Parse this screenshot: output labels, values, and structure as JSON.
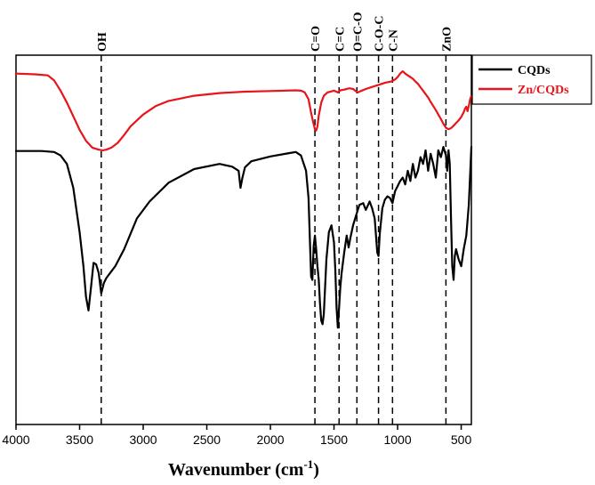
{
  "chart_data": {
    "type": "line",
    "title": "",
    "xlabel": "Wavenumber (cm",
    "xlabel_sup": "-1",
    "xlabel_suffix": ")",
    "ylabel": "",
    "xlim": [
      4000,
      420
    ],
    "ylim": [
      0,
      1
    ],
    "x_ticks": [
      {
        "value": 4000,
        "label": "4000"
      },
      {
        "value": 3500,
        "label": "3500"
      },
      {
        "value": 3000,
        "label": "3000"
      },
      {
        "value": 2500,
        "label": "2500"
      },
      {
        "value": 2000,
        "label": "2000"
      },
      {
        "value": 1500,
        "label": "1500"
      },
      {
        "value": 1000,
        "label": "1000"
      },
      {
        "value": 500,
        "label": "500"
      }
    ],
    "legend_position": "top-right-outside",
    "annotations": [
      {
        "label": "OH",
        "x": 3330
      },
      {
        "label": "C=O",
        "x": 1650
      },
      {
        "label": "C=C",
        "x": 1460
      },
      {
        "label": "O=C-O",
        "x": 1320
      },
      {
        "label": "C-O-C",
        "x": 1150
      },
      {
        "label": "C-N",
        "x": 1040
      },
      {
        "label": "ZnO",
        "x": 620
      }
    ],
    "series": [
      {
        "name": "CQDs",
        "color": "#000000",
        "x": [
          4000,
          3800,
          3700,
          3650,
          3600,
          3550,
          3500,
          3470,
          3450,
          3430,
          3410,
          3390,
          3370,
          3350,
          3330,
          3310,
          3290,
          3260,
          3220,
          3150,
          3050,
          2950,
          2800,
          2600,
          2400,
          2300,
          2250,
          2235,
          2220,
          2200,
          2150,
          2000,
          1850,
          1800,
          1760,
          1720,
          1700,
          1690,
          1680,
          1670,
          1660,
          1650,
          1640,
          1630,
          1620,
          1610,
          1600,
          1590,
          1580,
          1560,
          1540,
          1520,
          1500,
          1490,
          1480,
          1470,
          1460,
          1450,
          1440,
          1420,
          1400,
          1385,
          1370,
          1350,
          1330,
          1300,
          1270,
          1250,
          1220,
          1200,
          1180,
          1160,
          1150,
          1140,
          1120,
          1100,
          1080,
          1060,
          1040,
          1020,
          1000,
          980,
          960,
          940,
          920,
          900,
          880,
          860,
          840,
          820,
          800,
          780,
          760,
          740,
          720,
          700,
          680,
          660,
          640,
          620,
          610,
          600,
          590,
          580,
          570,
          560,
          550,
          540,
          520,
          500,
          480,
          460,
          440,
          420
        ],
        "y": [
          0.758,
          0.758,
          0.755,
          0.745,
          0.72,
          0.65,
          0.52,
          0.42,
          0.33,
          0.29,
          0.36,
          0.43,
          0.425,
          0.4,
          0.34,
          0.37,
          0.385,
          0.4,
          0.42,
          0.47,
          0.56,
          0.61,
          0.665,
          0.705,
          0.72,
          0.712,
          0.7,
          0.65,
          0.68,
          0.71,
          0.728,
          0.742,
          0.752,
          0.755,
          0.745,
          0.7,
          0.62,
          0.5,
          0.39,
          0.38,
          0.48,
          0.51,
          0.47,
          0.42,
          0.38,
          0.31,
          0.26,
          0.25,
          0.28,
          0.44,
          0.52,
          0.54,
          0.49,
          0.41,
          0.3,
          0.24,
          0.3,
          0.36,
          0.4,
          0.46,
          0.51,
          0.475,
          0.505,
          0.54,
          0.565,
          0.6,
          0.605,
          0.585,
          0.61,
          0.59,
          0.56,
          0.46,
          0.45,
          0.515,
          0.59,
          0.615,
          0.625,
          0.62,
          0.605,
          0.64,
          0.655,
          0.67,
          0.68,
          0.66,
          0.7,
          0.67,
          0.72,
          0.68,
          0.7,
          0.74,
          0.72,
          0.76,
          0.7,
          0.75,
          0.72,
          0.68,
          0.76,
          0.74,
          0.77,
          0.745,
          0.7,
          0.76,
          0.72,
          0.56,
          0.42,
          0.38,
          0.45,
          0.47,
          0.44,
          0.42,
          0.47,
          0.51,
          0.6,
          0.77
        ]
      },
      {
        "name": "Zn/CQDs",
        "color": "#e8141b",
        "x": [
          4000,
          3850,
          3750,
          3700,
          3650,
          3600,
          3550,
          3500,
          3450,
          3400,
          3350,
          3320,
          3290,
          3250,
          3200,
          3150,
          3100,
          3000,
          2900,
          2800,
          2600,
          2400,
          2200,
          2000,
          1800,
          1760,
          1730,
          1700,
          1680,
          1665,
          1650,
          1640,
          1630,
          1620,
          1600,
          1580,
          1550,
          1500,
          1470,
          1450,
          1420,
          1400,
          1380,
          1350,
          1330,
          1310,
          1290,
          1250,
          1200,
          1150,
          1100,
          1050,
          1020,
          1000,
          980,
          960,
          940,
          920,
          900,
          880,
          860,
          840,
          820,
          800,
          780,
          760,
          740,
          720,
          700,
          680,
          660,
          640,
          620,
          600,
          580,
          560,
          540,
          520,
          500,
          480,
          470,
          460,
          450,
          440,
          430,
          420
        ],
        "y": [
          0.985,
          0.983,
          0.98,
          0.965,
          0.935,
          0.9,
          0.86,
          0.82,
          0.788,
          0.768,
          0.762,
          0.76,
          0.762,
          0.768,
          0.782,
          0.805,
          0.83,
          0.865,
          0.89,
          0.905,
          0.92,
          0.928,
          0.932,
          0.934,
          0.936,
          0.935,
          0.93,
          0.91,
          0.87,
          0.845,
          0.822,
          0.818,
          0.83,
          0.862,
          0.9,
          0.92,
          0.93,
          0.935,
          0.93,
          0.936,
          0.938,
          0.94,
          0.942,
          0.94,
          0.934,
          0.93,
          0.934,
          0.94,
          0.946,
          0.952,
          0.958,
          0.962,
          0.968,
          0.975,
          0.985,
          0.992,
          0.985,
          0.98,
          0.975,
          0.97,
          0.962,
          0.955,
          0.945,
          0.935,
          0.925,
          0.915,
          0.902,
          0.89,
          0.878,
          0.865,
          0.852,
          0.838,
          0.826,
          0.822,
          0.825,
          0.832,
          0.84,
          0.848,
          0.858,
          0.872,
          0.882,
          0.888,
          0.875,
          0.89,
          0.91,
          0.92
        ]
      }
    ]
  }
}
